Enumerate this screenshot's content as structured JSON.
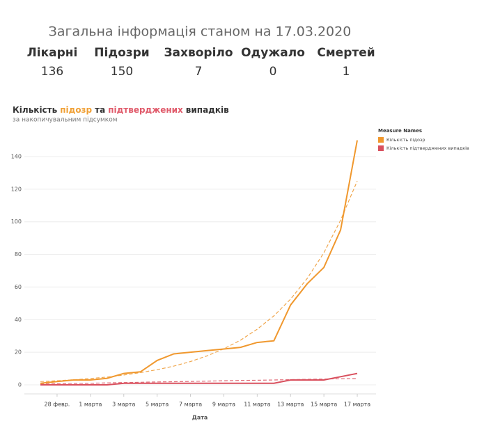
{
  "header": {
    "title": "Загальна інформація станом на 17.03.2020",
    "kpis": [
      {
        "label": "Лікарні",
        "value": 136
      },
      {
        "label": "Підозри",
        "value": 150
      },
      {
        "label": "Захворіло",
        "value": 7
      },
      {
        "label": "Одужало",
        "value": 0
      },
      {
        "label": "Смертей",
        "value": 1
      }
    ]
  },
  "chart_data": {
    "type": "line",
    "title_parts": [
      {
        "text": "Кількість",
        "color": "#333333"
      },
      {
        "text": "підозр",
        "color": "#f0a035"
      },
      {
        "text": "та",
        "color": "#333333"
      },
      {
        "text": "підтверджених",
        "color": "#e05a6a"
      },
      {
        "text": "випадків",
        "color": "#333333"
      }
    ],
    "subtitle": "за накопичувальним підсумком",
    "x_label": "Дата",
    "legend_title": "Measure Names",
    "categories": [
      null,
      "28 февр.",
      null,
      "1 марта",
      null,
      "3 марта",
      null,
      "5 марта",
      null,
      "7 марта",
      null,
      "9 марта",
      null,
      "11 марта",
      null,
      "13 марта",
      null,
      "15 марта",
      null,
      "17 марта"
    ],
    "series": [
      {
        "name": "Кількість підозр",
        "color": "#f0982e",
        "values": [
          1,
          2,
          3,
          3,
          4,
          7,
          8,
          15,
          19,
          20,
          21,
          22,
          23,
          26,
          27,
          49,
          62,
          72,
          95,
          150
        ]
      },
      {
        "name": "Кількість підтверджених випадків",
        "color": "#d9505e",
        "values": [
          0,
          0,
          0,
          0,
          0,
          1,
          1,
          1,
          1,
          1,
          1,
          1,
          1,
          1,
          1,
          3,
          3,
          3,
          5,
          7
        ]
      }
    ],
    "trend_lines": [
      {
        "color": "#f0a74e",
        "values": [
          2,
          2.5,
          3.1,
          3.9,
          4.8,
          6,
          7.5,
          9.3,
          11.5,
          14.3,
          17.8,
          22.1,
          27.4,
          34.1,
          42.3,
          52.6,
          65.3,
          81,
          101,
          125
        ]
      },
      {
        "color": "#e06a76",
        "values": [
          0.5,
          0.7,
          0.9,
          1,
          1.2,
          1.4,
          1.6,
          1.8,
          1.9,
          2.1,
          2.3,
          2.5,
          2.7,
          2.8,
          3,
          3.2,
          3.4,
          3.6,
          3.7,
          3.9
        ]
      }
    ],
    "ylim": [
      -5,
      155
    ],
    "yticks": [
      0,
      20,
      40,
      60,
      80,
      100,
      120,
      140
    ],
    "grid": true
  }
}
